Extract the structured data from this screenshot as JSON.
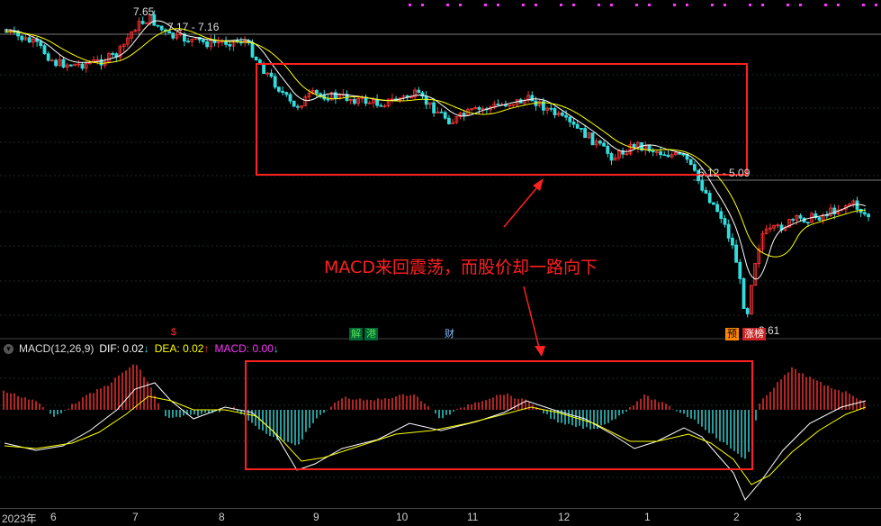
{
  "chart_data": [
    {
      "type": "candlestick",
      "panel": "price",
      "price_labels": {
        "high": "7.65",
        "range_top": "7.17 - 7.16",
        "range_mid": "5.12 - 5.09",
        "low": "3.61"
      },
      "moving_average_colors": [
        "#ffffff",
        "#ffff00"
      ],
      "event_tags": [
        {
          "text": "$",
          "color": "#ff3333"
        },
        {
          "text": "解",
          "color": "#55dd55"
        },
        {
          "text": "港",
          "color": "#55dd55"
        },
        {
          "text": "财",
          "color": "#88bbff"
        },
        {
          "text": "预",
          "color": "#ff8800"
        },
        {
          "text": "涨榜",
          "color": "#ff3333"
        }
      ],
      "annotation": "MACD来回震荡，而股价却一路向下"
    },
    {
      "type": "bar",
      "panel": "macd",
      "indicator": "MACD(12,26,9)",
      "dif": {
        "label": "DIF:",
        "value": "0.02",
        "arrow": "↓",
        "color": "#ffffff"
      },
      "dea": {
        "label": "DEA:",
        "value": "0.02",
        "arrow": "↑",
        "color": "#ffff00"
      },
      "macd": {
        "label": "MACD:",
        "value": "0.00",
        "arrow": "↓",
        "color": "#ff33ff"
      },
      "x_ticks": [
        "2023年",
        "6",
        "7",
        "8",
        "9",
        "10",
        "11",
        "12",
        "1",
        "2",
        "3"
      ]
    }
  ],
  "colors": {
    "up": "#ff3333",
    "down": "#33dddd",
    "highlight_box": "#ff2020"
  }
}
